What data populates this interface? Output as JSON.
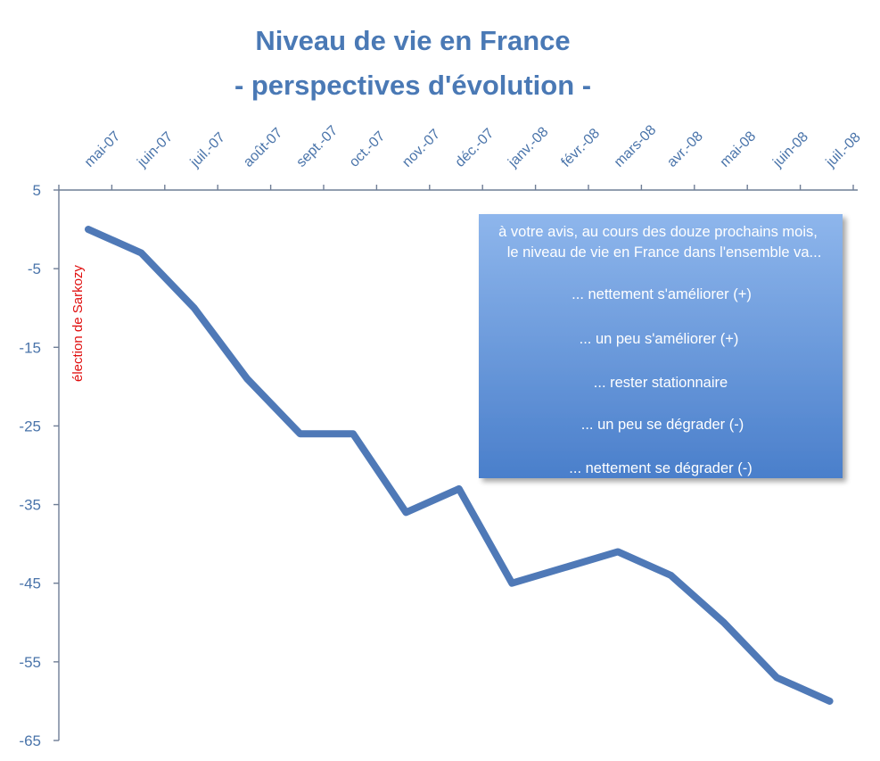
{
  "chart_data": {
    "type": "line",
    "title": "Niveau de vie en France",
    "subtitle": "- perspectives d'évolution -",
    "xlabel": "",
    "ylabel": "",
    "categories": [
      "mai-07",
      "juin-07",
      "juil.-07",
      "août-07",
      "sept.-07",
      "oct.-07",
      "nov.-07",
      "déc.-07",
      "janv.-08",
      "févr.-08",
      "mars-08",
      "avr.-08",
      "mai-08",
      "juin-08",
      "juil.-08"
    ],
    "series": [
      {
        "values": [
          0,
          -3,
          -10,
          -19,
          -26,
          -26,
          -36,
          -33,
          -45,
          -43,
          -41,
          -44,
          -50,
          -57,
          -60
        ]
      }
    ],
    "ylim": [
      -65,
      5
    ],
    "yticks": [
      5,
      -5,
      -15,
      -25,
      -35,
      -45,
      -55,
      -65
    ],
    "grid": false,
    "annotations": [
      {
        "text": "élection de Sarkozy",
        "at": "mai-07",
        "color": "#e01010"
      }
    ],
    "legend_box": {
      "lines": [
        "à votre avis, au cours des douze prochains mois,",
        "le niveau de vie en France dans l'ensemble va...",
        "... nettement s'améliorer (+)",
        "... un peu s'améliorer (+)",
        "... rester stationnaire",
        "... un peu se dégrader (-)",
        "... nettement se dégrader (-)"
      ]
    },
    "colors": {
      "line": "#4f79b7",
      "title": "#4a79b5",
      "axis_text": "#4a74aa",
      "annotation": "#e01010"
    }
  }
}
